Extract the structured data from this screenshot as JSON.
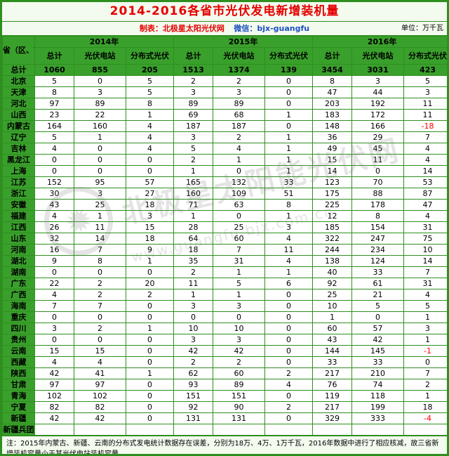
{
  "page": {
    "title": "2014-2016各省市光伏发电新增装机量",
    "credit": "制表：北极星太阳光伏网",
    "wechat": "微信：bjx-guangfu",
    "unit": "单位：万千瓦",
    "note": "注：2015年内蒙古、新疆、云南的分布式发电统计数据存在误差，分别为18万、4万、1万千瓦，2016年数据中进行了相应核减，故三省新增装机容量小于其光伏电站装机容量。",
    "watermark_badge": "sun-star-logo",
    "watermark_line1": "北极星太阳能光伏网",
    "watermark_line2": "www.guangfu.bjx.com.cn"
  },
  "colors": {
    "green": "#3aa02c",
    "dark_green_border": "#2e8f1f",
    "pale_green": "#f3faee",
    "title_red": "#e60000",
    "wechat_blue": "#1d4fc4",
    "negative_red": "#ff0000"
  },
  "chart_data": {
    "type": "table",
    "title": "2014-2016各省市光伏发电新增装机量",
    "unit": "万千瓦",
    "row_header": "省（区、市）",
    "year_groups": [
      "2014年",
      "2015年",
      "2016年"
    ],
    "sub_columns": [
      "总计",
      "光伏电站",
      "分布式光伏"
    ],
    "rows": [
      {
        "province": "总计",
        "values": [
          1060,
          855,
          205,
          1513,
          1374,
          139,
          3454,
          3031,
          423
        ]
      },
      {
        "province": "北京",
        "values": [
          5,
          0,
          5,
          2,
          2,
          0,
          8,
          3,
          5
        ]
      },
      {
        "province": "天津",
        "values": [
          8,
          3,
          5,
          3,
          3,
          0,
          47,
          44,
          3
        ]
      },
      {
        "province": "河北",
        "values": [
          97,
          89,
          8,
          89,
          89,
          0,
          203,
          192,
          11
        ]
      },
      {
        "province": "山西",
        "values": [
          23,
          22,
          1,
          69,
          68,
          1,
          183,
          172,
          11
        ]
      },
      {
        "province": "内蒙古",
        "values": [
          164,
          160,
          4,
          187,
          187,
          0,
          148,
          166,
          -18
        ]
      },
      {
        "province": "辽宁",
        "values": [
          5,
          1,
          4,
          3,
          2,
          1,
          36,
          29,
          7
        ]
      },
      {
        "province": "吉林",
        "values": [
          4,
          0,
          4,
          5,
          4,
          1,
          49,
          45,
          4
        ]
      },
      {
        "province": "黑龙江",
        "values": [
          0,
          0,
          0,
          2,
          1,
          1,
          15,
          11,
          4
        ]
      },
      {
        "province": "上海",
        "values": [
          0,
          0,
          0,
          1,
          0,
          1,
          14,
          0,
          14
        ]
      },
      {
        "province": "江苏",
        "values": [
          152,
          95,
          57,
          165,
          132,
          33,
          123,
          70,
          53
        ]
      },
      {
        "province": "浙江",
        "values": [
          30,
          3,
          27,
          160,
          109,
          51,
          175,
          88,
          87
        ]
      },
      {
        "province": "安徽",
        "values": [
          43,
          25,
          18,
          71,
          63,
          8,
          225,
          178,
          47
        ]
      },
      {
        "province": "福建",
        "values": [
          4,
          1,
          3,
          1,
          0,
          1,
          12,
          8,
          4
        ]
      },
      {
        "province": "江西",
        "values": [
          26,
          11,
          15,
          28,
          25,
          3,
          185,
          154,
          31
        ]
      },
      {
        "province": "山东",
        "values": [
          32,
          14,
          18,
          64,
          60,
          4,
          322,
          247,
          75
        ]
      },
      {
        "province": "河南",
        "values": [
          16,
          7,
          9,
          18,
          7,
          11,
          244,
          234,
          10
        ]
      },
      {
        "province": "湖北",
        "values": [
          9,
          8,
          1,
          35,
          31,
          4,
          138,
          124,
          14
        ]
      },
      {
        "province": "湖南",
        "values": [
          0,
          0,
          0,
          2,
          1,
          1,
          40,
          33,
          7
        ]
      },
      {
        "province": "广东",
        "values": [
          22,
          2,
          20,
          11,
          5,
          6,
          92,
          61,
          31
        ]
      },
      {
        "province": "广西",
        "values": [
          4,
          2,
          2,
          1,
          1,
          0,
          25,
          21,
          4
        ]
      },
      {
        "province": "海南",
        "values": [
          7,
          7,
          0,
          3,
          3,
          0,
          10,
          5,
          5
        ]
      },
      {
        "province": "重庆",
        "values": [
          0,
          0,
          0,
          0,
          0,
          0,
          1,
          0,
          1
        ]
      },
      {
        "province": "四川",
        "values": [
          3,
          2,
          1,
          10,
          10,
          0,
          60,
          57,
          3
        ]
      },
      {
        "province": "贵州",
        "values": [
          0,
          0,
          0,
          3,
          3,
          0,
          43,
          42,
          1
        ]
      },
      {
        "province": "云南",
        "values": [
          15,
          15,
          0,
          42,
          42,
          0,
          144,
          145,
          -1
        ]
      },
      {
        "province": "西藏",
        "values": [
          4,
          4,
          0,
          2,
          2,
          0,
          33,
          33,
          0
        ]
      },
      {
        "province": "陕西",
        "values": [
          42,
          41,
          1,
          62,
          60,
          2,
          217,
          210,
          7
        ]
      },
      {
        "province": "甘肃",
        "values": [
          97,
          97,
          0,
          93,
          89,
          4,
          76,
          74,
          2
        ]
      },
      {
        "province": "青海",
        "values": [
          102,
          102,
          0,
          151,
          151,
          0,
          119,
          118,
          1
        ]
      },
      {
        "province": "宁夏",
        "values": [
          82,
          82,
          0,
          92,
          90,
          2,
          217,
          199,
          18
        ]
      },
      {
        "province": "新疆",
        "values": [
          42,
          42,
          0,
          131,
          131,
          0,
          329,
          333,
          -4
        ]
      },
      {
        "province": "新疆兵团",
        "values": [
          "",
          "",
          "",
          "",
          "",
          "",
          "",
          "",
          ""
        ]
      }
    ]
  }
}
